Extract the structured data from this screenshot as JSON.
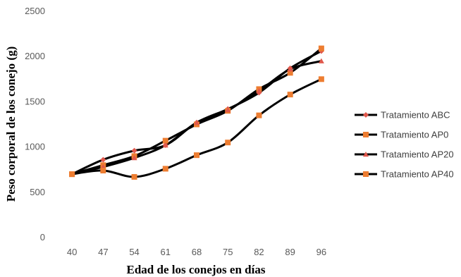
{
  "chart_data": {
    "type": "line",
    "xlabel": "Edad de los conejos en días",
    "ylabel": "Peso corporal de los conejo (g)",
    "categories": [
      "40",
      "47",
      "54",
      "61",
      "68",
      "75",
      "82",
      "89",
      "96"
    ],
    "ylim": [
      0,
      2500
    ],
    "yticks": [
      0,
      500,
      1000,
      1500,
      2000,
      2500
    ],
    "grid": false,
    "legend_position": "right",
    "series": [
      {
        "name": "Tratamiento ABC",
        "marker": "diamond",
        "line_color": "#000000",
        "marker_color": "#E0584C",
        "values": [
          700,
          860,
          960,
          1020,
          1270,
          1420,
          1600,
          1870,
          2060
        ]
      },
      {
        "name": "Tratamiento AP0",
        "marker": "square",
        "line_color": "#000000",
        "marker_color": "#ED7D31",
        "values": [
          700,
          800,
          900,
          1070,
          1250,
          1400,
          1640,
          1820,
          2090
        ]
      },
      {
        "name": "Tratamiento AP20",
        "marker": "triangle",
        "line_color": "#000000",
        "marker_color": "#E0584C",
        "values": [
          700,
          780,
          880,
          1020,
          1270,
          1410,
          1620,
          1860,
          1950
        ]
      },
      {
        "name": "Tratamiento AP40",
        "marker": "square",
        "line_color": "#000000",
        "marker_color": "#ED7D31",
        "values": [
          700,
          740,
          670,
          760,
          910,
          1050,
          1350,
          1580,
          1750
        ]
      }
    ]
  }
}
